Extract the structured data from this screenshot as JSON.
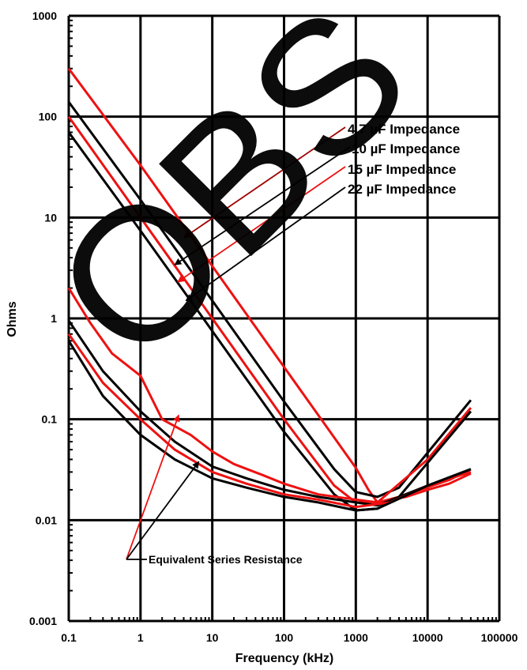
{
  "chart_data": {
    "type": "line",
    "xlabel": "Frequency (kHz)",
    "ylabel": "Ohms",
    "x_scale": "log",
    "y_scale": "log",
    "xlim": [
      0.1,
      100000
    ],
    "ylim": [
      0.001,
      1000
    ],
    "x_ticks": [
      "0.1",
      "1",
      "10",
      "100",
      "1000",
      "10000",
      "100000"
    ],
    "y_ticks": [
      "0.001",
      "0.01",
      "0.1",
      "1",
      "10",
      "100",
      "1000"
    ],
    "grid": true,
    "colors": {
      "red": "#ee1111",
      "black": "#000000",
      "dark_red": "#a00000"
    },
    "series": [
      {
        "color": "#ee1111",
        "points": [
          [
            0.1,
            300
          ],
          [
            1,
            33
          ],
          [
            10,
            3.3
          ],
          [
            100,
            0.33
          ],
          [
            1000,
            0.033
          ],
          [
            1500,
            0.02
          ],
          [
            2000,
            0.015
          ],
          [
            4000,
            0.017
          ],
          [
            20000,
            0.025
          ],
          [
            40000,
            0.032
          ]
        ]
      },
      {
        "color": "#000000",
        "points": [
          [
            0.1,
            140
          ],
          [
            1,
            15
          ],
          [
            10,
            1.5
          ],
          [
            100,
            0.15
          ],
          [
            500,
            0.032
          ],
          [
            1000,
            0.019
          ],
          [
            2000,
            0.017
          ],
          [
            4000,
            0.021
          ],
          [
            40000,
            0.155
          ]
        ]
      },
      {
        "color": "#ee1111",
        "points": [
          [
            0.1,
            100
          ],
          [
            1,
            10
          ],
          [
            10,
            1
          ],
          [
            100,
            0.1
          ],
          [
            500,
            0.022
          ],
          [
            1000,
            0.015
          ],
          [
            2000,
            0.015
          ],
          [
            10000,
            0.04
          ],
          [
            40000,
            0.13
          ]
        ]
      },
      {
        "color": "#000000",
        "points": [
          [
            0.1,
            70
          ],
          [
            1,
            7.4
          ],
          [
            10,
            0.75
          ],
          [
            100,
            0.075
          ],
          [
            500,
            0.018
          ],
          [
            1000,
            0.0125
          ],
          [
            2000,
            0.013
          ],
          [
            4000,
            0.017
          ],
          [
            40000,
            0.12
          ]
        ]
      },
      {
        "color": "#ee1111",
        "points": [
          [
            0.1,
            2.0
          ],
          [
            0.2,
            0.9
          ],
          [
            0.4,
            0.45
          ],
          [
            1,
            0.27
          ],
          [
            2,
            0.1
          ],
          [
            5,
            0.07
          ],
          [
            10,
            0.048
          ],
          [
            20,
            0.036
          ],
          [
            50,
            0.028
          ],
          [
            100,
            0.023
          ],
          [
            300,
            0.018
          ],
          [
            1000,
            0.016
          ],
          [
            2000,
            0.015
          ],
          [
            5000,
            0.017
          ],
          [
            10000,
            0.02
          ],
          [
            20000,
            0.023
          ],
          [
            40000,
            0.029
          ]
        ]
      },
      {
        "color": "#000000",
        "points": [
          [
            0.1,
            0.95
          ],
          [
            0.3,
            0.3
          ],
          [
            1,
            0.12
          ],
          [
            3,
            0.06
          ],
          [
            10,
            0.034
          ],
          [
            30,
            0.026
          ],
          [
            100,
            0.02
          ],
          [
            300,
            0.017
          ],
          [
            1000,
            0.015
          ],
          [
            2000,
            0.014
          ],
          [
            10000,
            0.022
          ],
          [
            40000,
            0.032
          ]
        ]
      },
      {
        "color": "#ee1111",
        "points": [
          [
            0.1,
            0.7
          ],
          [
            0.3,
            0.23
          ],
          [
            1,
            0.1
          ],
          [
            3,
            0.05
          ],
          [
            10,
            0.03
          ],
          [
            30,
            0.023
          ],
          [
            100,
            0.018
          ],
          [
            300,
            0.016
          ],
          [
            1000,
            0.0135
          ],
          [
            3000,
            0.015
          ],
          [
            10000,
            0.022
          ],
          [
            40000,
            0.03
          ]
        ]
      },
      {
        "color": "#000000",
        "points": [
          [
            0.1,
            0.6
          ],
          [
            0.3,
            0.17
          ],
          [
            1,
            0.07
          ],
          [
            3,
            0.04
          ],
          [
            10,
            0.026
          ],
          [
            30,
            0.021
          ],
          [
            100,
            0.017
          ],
          [
            300,
            0.015
          ],
          [
            1000,
            0.0125
          ],
          [
            2000,
            0.013
          ],
          [
            10000,
            0.022
          ],
          [
            40000,
            0.032
          ]
        ]
      }
    ],
    "annotations": {
      "impedance_labels": [
        "4.7 µF Impedance",
        "10 µF Impedance",
        "15 µF Impedance",
        "22 µF Impedance"
      ],
      "esr_label": "Equivalent Series Resistance"
    },
    "watermark": "OBS"
  }
}
